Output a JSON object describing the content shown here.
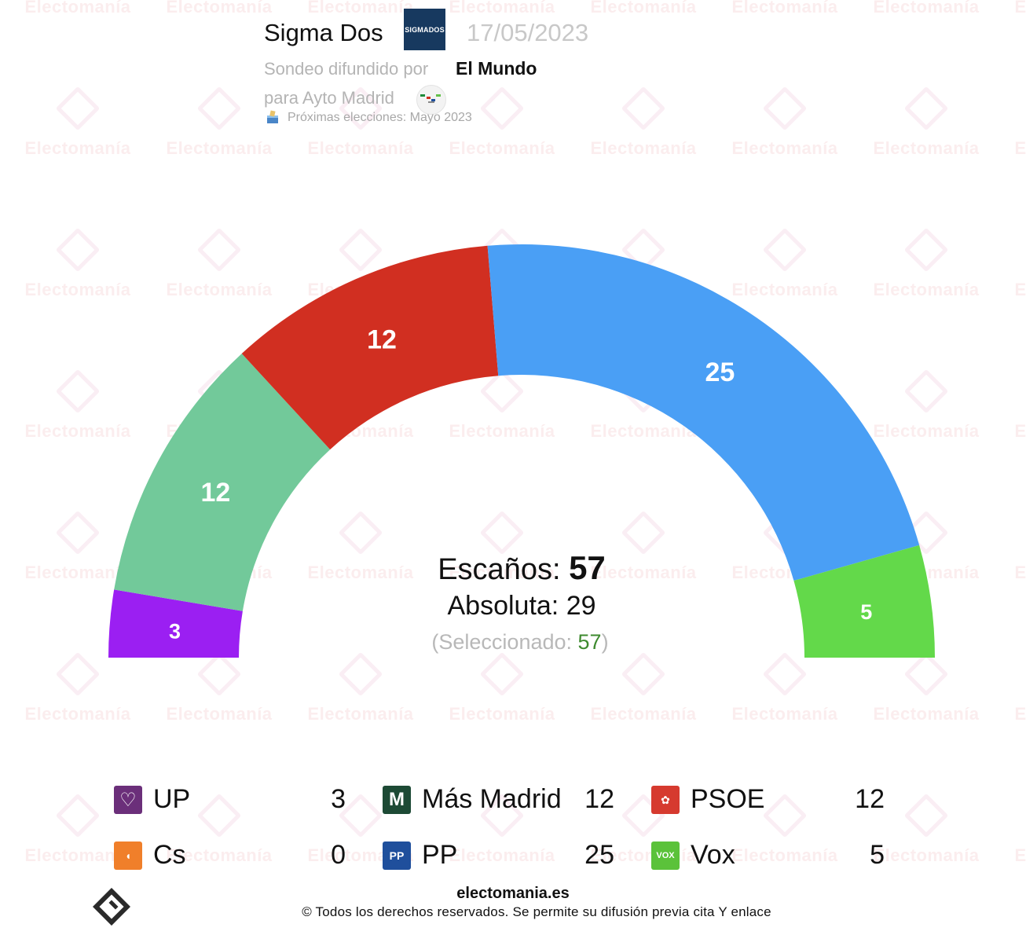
{
  "watermark": {
    "text": "Electomanía"
  },
  "header": {
    "pollster": "Sigma Dos",
    "pollster_logo_text": "SIGMADOS",
    "date": "17/05/2023",
    "broadcast_prefix": "Sondeo difundido por",
    "media": "El Mundo",
    "scope": "para Ayto Madrid",
    "next_elections": "Próximas elecciones: Mayo 2023"
  },
  "chart_data": {
    "type": "pie",
    "subtype": "parliament-semicircle",
    "total_seats": 57,
    "majority": 29,
    "selected": 57,
    "center_labels": {
      "seats_label": "Escaños: ",
      "seats_value": "57",
      "majority_label": "Absoluta: 29",
      "selected_open": "(Seleccionado: ",
      "selected_value": "57",
      "selected_close": ")"
    },
    "segments": [
      {
        "party": "UP",
        "seats": 3,
        "color": "#9b1ff2"
      },
      {
        "party": "Más Madrid",
        "seats": 12,
        "color": "#72c99a"
      },
      {
        "party": "PSOE",
        "seats": 12,
        "color": "#d12f21"
      },
      {
        "party": "PP",
        "seats": 25,
        "color": "#4a9ff5"
      },
      {
        "party": "Vox",
        "seats": 5,
        "color": "#63d94a"
      }
    ]
  },
  "legend": {
    "items": [
      {
        "name": "UP",
        "seats": "3",
        "color": "#6b2f7a",
        "icon": "heart-icon",
        "icon_text": "♡"
      },
      {
        "name": "Más Madrid",
        "seats": "12",
        "color": "#1d4a35",
        "icon": "mas-madrid-icon",
        "icon_text": "M"
      },
      {
        "name": "PSOE",
        "seats": "12",
        "color": "#d63a2f",
        "icon": "rose-icon",
        "icon_text": "✿"
      },
      {
        "name": "Cs",
        "seats": "0",
        "color": "#f07f2a",
        "icon": "cs-icon",
        "icon_text": "◖"
      },
      {
        "name": "PP",
        "seats": "25",
        "color": "#1f4f9c",
        "icon": "pp-icon",
        "icon_text": "PP"
      },
      {
        "name": "Vox",
        "seats": "5",
        "color": "#5bc23a",
        "icon": "vox-icon",
        "icon_text": "VOX"
      }
    ]
  },
  "footer": {
    "site": "electomania.es",
    "copyright": "© Todos los derechos reservados. Se permite su difusión previa cita Y enlace"
  }
}
